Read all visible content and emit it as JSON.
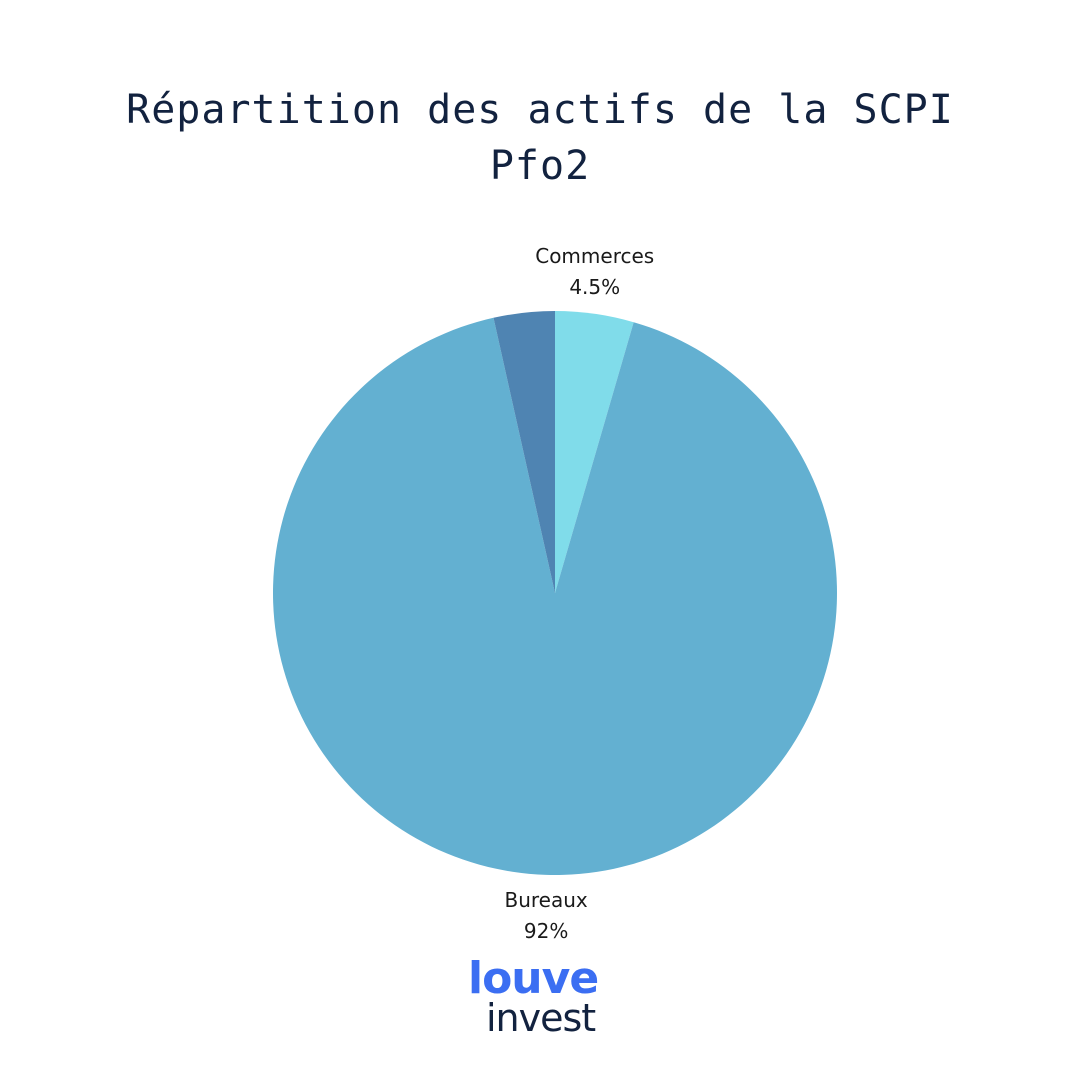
{
  "chart_data": {
    "type": "pie",
    "title": "Répartition des actifs de la SCPI Pfo2",
    "slices": [
      {
        "label": "Commerces",
        "value": 4.5,
        "value_label": "4.5%",
        "color": "#80dcea",
        "show_label": true,
        "label_side": "top"
      },
      {
        "label": "Bureaux",
        "value": 92,
        "value_label": "92%",
        "color": "#63b0d1",
        "show_label": true,
        "label_side": "bottom"
      },
      {
        "label": "",
        "value": 3.5,
        "value_label": "",
        "color": "#4f84b2",
        "show_label": false
      }
    ],
    "start_angle": "top",
    "direction": "clockwise",
    "label_color": "#1a1a1a"
  },
  "logo": {
    "line1": "louve",
    "line2": "invest",
    "line1_color": "#3b6ef2",
    "line2_color": "#12223f"
  }
}
